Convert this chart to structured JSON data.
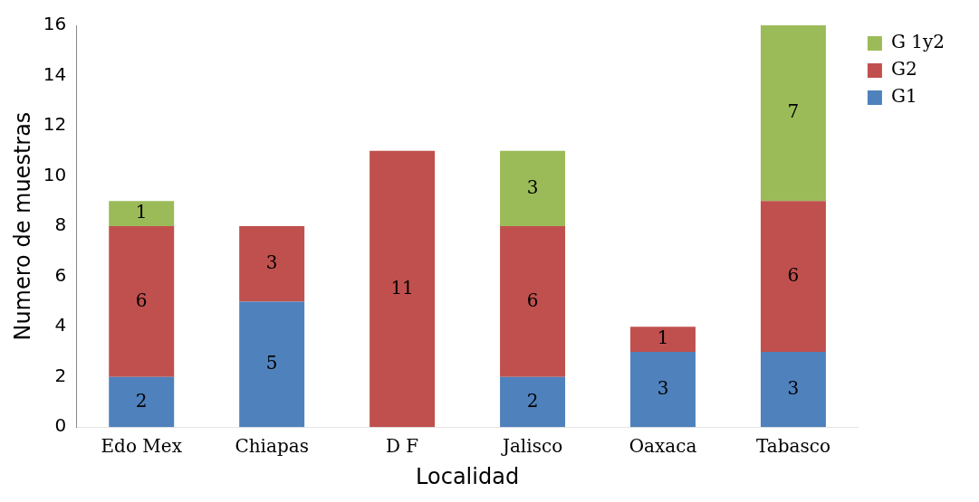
{
  "chart_data": {
    "type": "bar",
    "xlabel": "Localidad",
    "ylabel": "Numero de muestras",
    "categories": [
      "Edo Mex",
      "Chiapas",
      "D F",
      "Jalisco",
      "Oaxaca",
      "Tabasco"
    ],
    "series": [
      {
        "name": "G1",
        "color": "#4f81bd",
        "values": [
          2,
          5,
          null,
          2,
          3,
          3
        ]
      },
      {
        "name": "G2",
        "color": "#c0504d",
        "values": [
          6,
          3,
          11,
          6,
          1,
          6
        ]
      },
      {
        "name": "G 1y2",
        "color": "#9bbb59",
        "values": [
          1,
          null,
          null,
          3,
          null,
          7
        ]
      }
    ],
    "stacked": true,
    "ylim": [
      0,
      16
    ],
    "yticks": [
      0,
      2,
      4,
      6,
      8,
      10,
      12,
      14,
      16
    ],
    "grid": false,
    "legend": "top right",
    "data_labels": true
  }
}
